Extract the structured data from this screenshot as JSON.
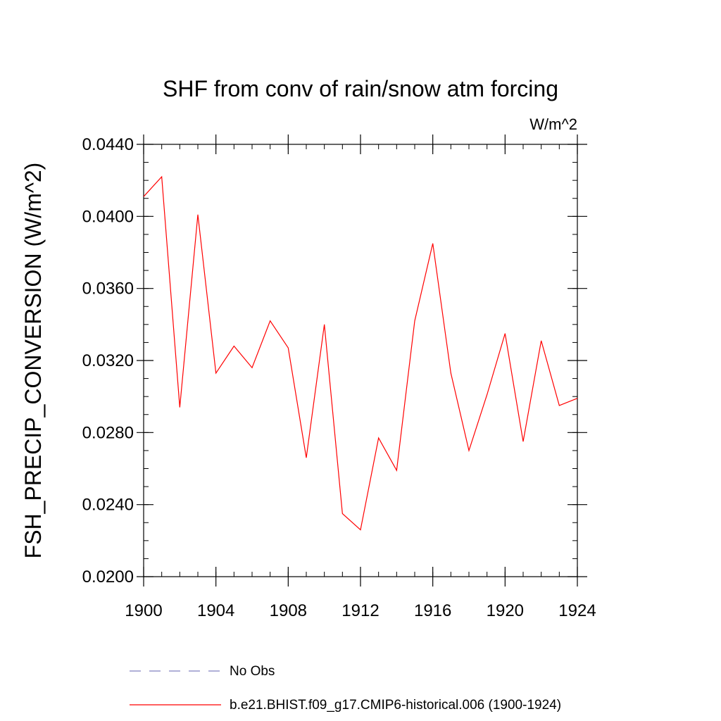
{
  "chart_data": {
    "type": "line",
    "title": "SHF from conv of rain/snow atm forcing",
    "units_label": "W/m^2",
    "ylabel": "FSH_PRECIP_CONVERSION  (W/m^2)",
    "xlabel": "",
    "xlim": [
      1900,
      1924
    ],
    "ylim": [
      0.02,
      0.044
    ],
    "x_ticks": [
      1900,
      1904,
      1908,
      1912,
      1916,
      1920,
      1924
    ],
    "x_tick_labels": [
      "1900",
      "1904",
      "1908",
      "1912",
      "1916",
      "1920",
      "1924"
    ],
    "y_ticks": [
      0.02,
      0.024,
      0.028,
      0.032,
      0.036,
      0.04,
      0.044
    ],
    "y_tick_labels": [
      "0.0200",
      "0.0240",
      "0.0280",
      "0.0320",
      "0.0360",
      "0.0400",
      "0.0440"
    ],
    "x_minor_step": 1,
    "y_minor_step": 0.001,
    "grid": false,
    "legend_position": "bottom",
    "series": [
      {
        "name": "No Obs",
        "style": "dashed",
        "color": "#8080c0",
        "x": [],
        "values": []
      },
      {
        "name": "b.e21.BHIST.f09_g17.CMIP6-historical.006 (1900-1924)",
        "style": "solid",
        "color": "#ff0000",
        "x": [
          1900,
          1901,
          1902,
          1903,
          1904,
          1905,
          1906,
          1907,
          1908,
          1909,
          1910,
          1911,
          1912,
          1913,
          1914,
          1915,
          1916,
          1917,
          1918,
          1919,
          1920,
          1921,
          1922,
          1923,
          1924
        ],
        "values": [
          0.0411,
          0.0422,
          0.0294,
          0.0401,
          0.0313,
          0.0328,
          0.0316,
          0.0342,
          0.0327,
          0.0266,
          0.034,
          0.0235,
          0.0226,
          0.0277,
          0.0259,
          0.0342,
          0.0385,
          0.0313,
          0.027,
          0.0301,
          0.0335,
          0.0275,
          0.0331,
          0.0295,
          0.0299
        ]
      }
    ]
  }
}
